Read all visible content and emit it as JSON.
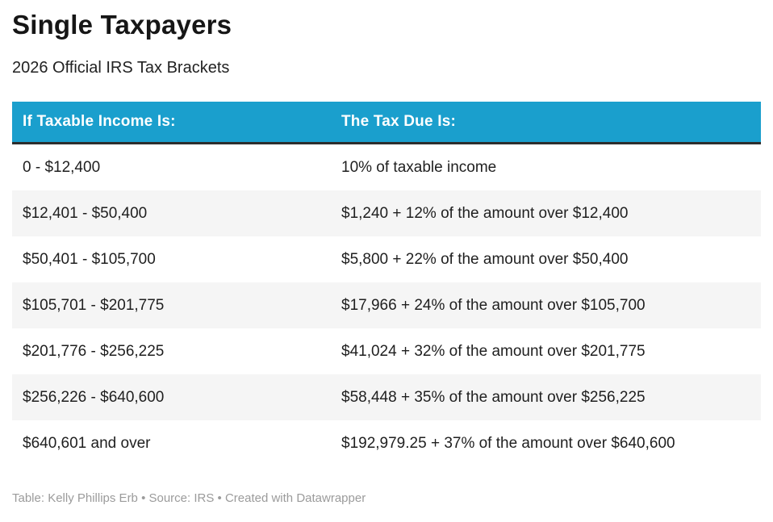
{
  "chart_data": {
    "type": "table",
    "title": "Single Taxpayers",
    "subtitle": "2026 Official IRS Tax Brackets",
    "columns": [
      "If Taxable Income Is:",
      "The Tax Due Is:"
    ],
    "rows": [
      [
        "0 - $12,400",
        "10% of taxable income"
      ],
      [
        "$12,401 - $50,400",
        "$1,240 + 12% of the amount over $12,400"
      ],
      [
        "$50,401 - $105,700",
        "$5,800 + 22% of the amount over $50,400"
      ],
      [
        "$105,701 - $201,775",
        "$17,966 + 24% of the amount over $105,700"
      ],
      [
        "$201,776 - $256,225",
        "$41,024 + 32% of the amount over $201,775"
      ],
      [
        "$256,226 - $640,600",
        "$58,448 + 35% of the amount over $256,225"
      ],
      [
        "$640,601 and over",
        "$192,979.25 + 37% of the amount over $640,600"
      ]
    ],
    "footer": "Table: Kelly Phillips Erb • Source: IRS • Created with Datawrapper",
    "layout_hints": {
      "header_style": "solid fill, bold white text",
      "row_striping": "alternating white and light gray starting with white",
      "legend": "none",
      "grid": "off"
    }
  },
  "colors": {
    "header_bg": "#1A9FCD",
    "header_text": "#FFFFFF",
    "header_border_bottom": "#2D2D2D",
    "row_alt_bg": "#F5F5F5",
    "body_text": "#1F1F1F",
    "title_text": "#161616",
    "footer_text": "#9B9B9B"
  }
}
